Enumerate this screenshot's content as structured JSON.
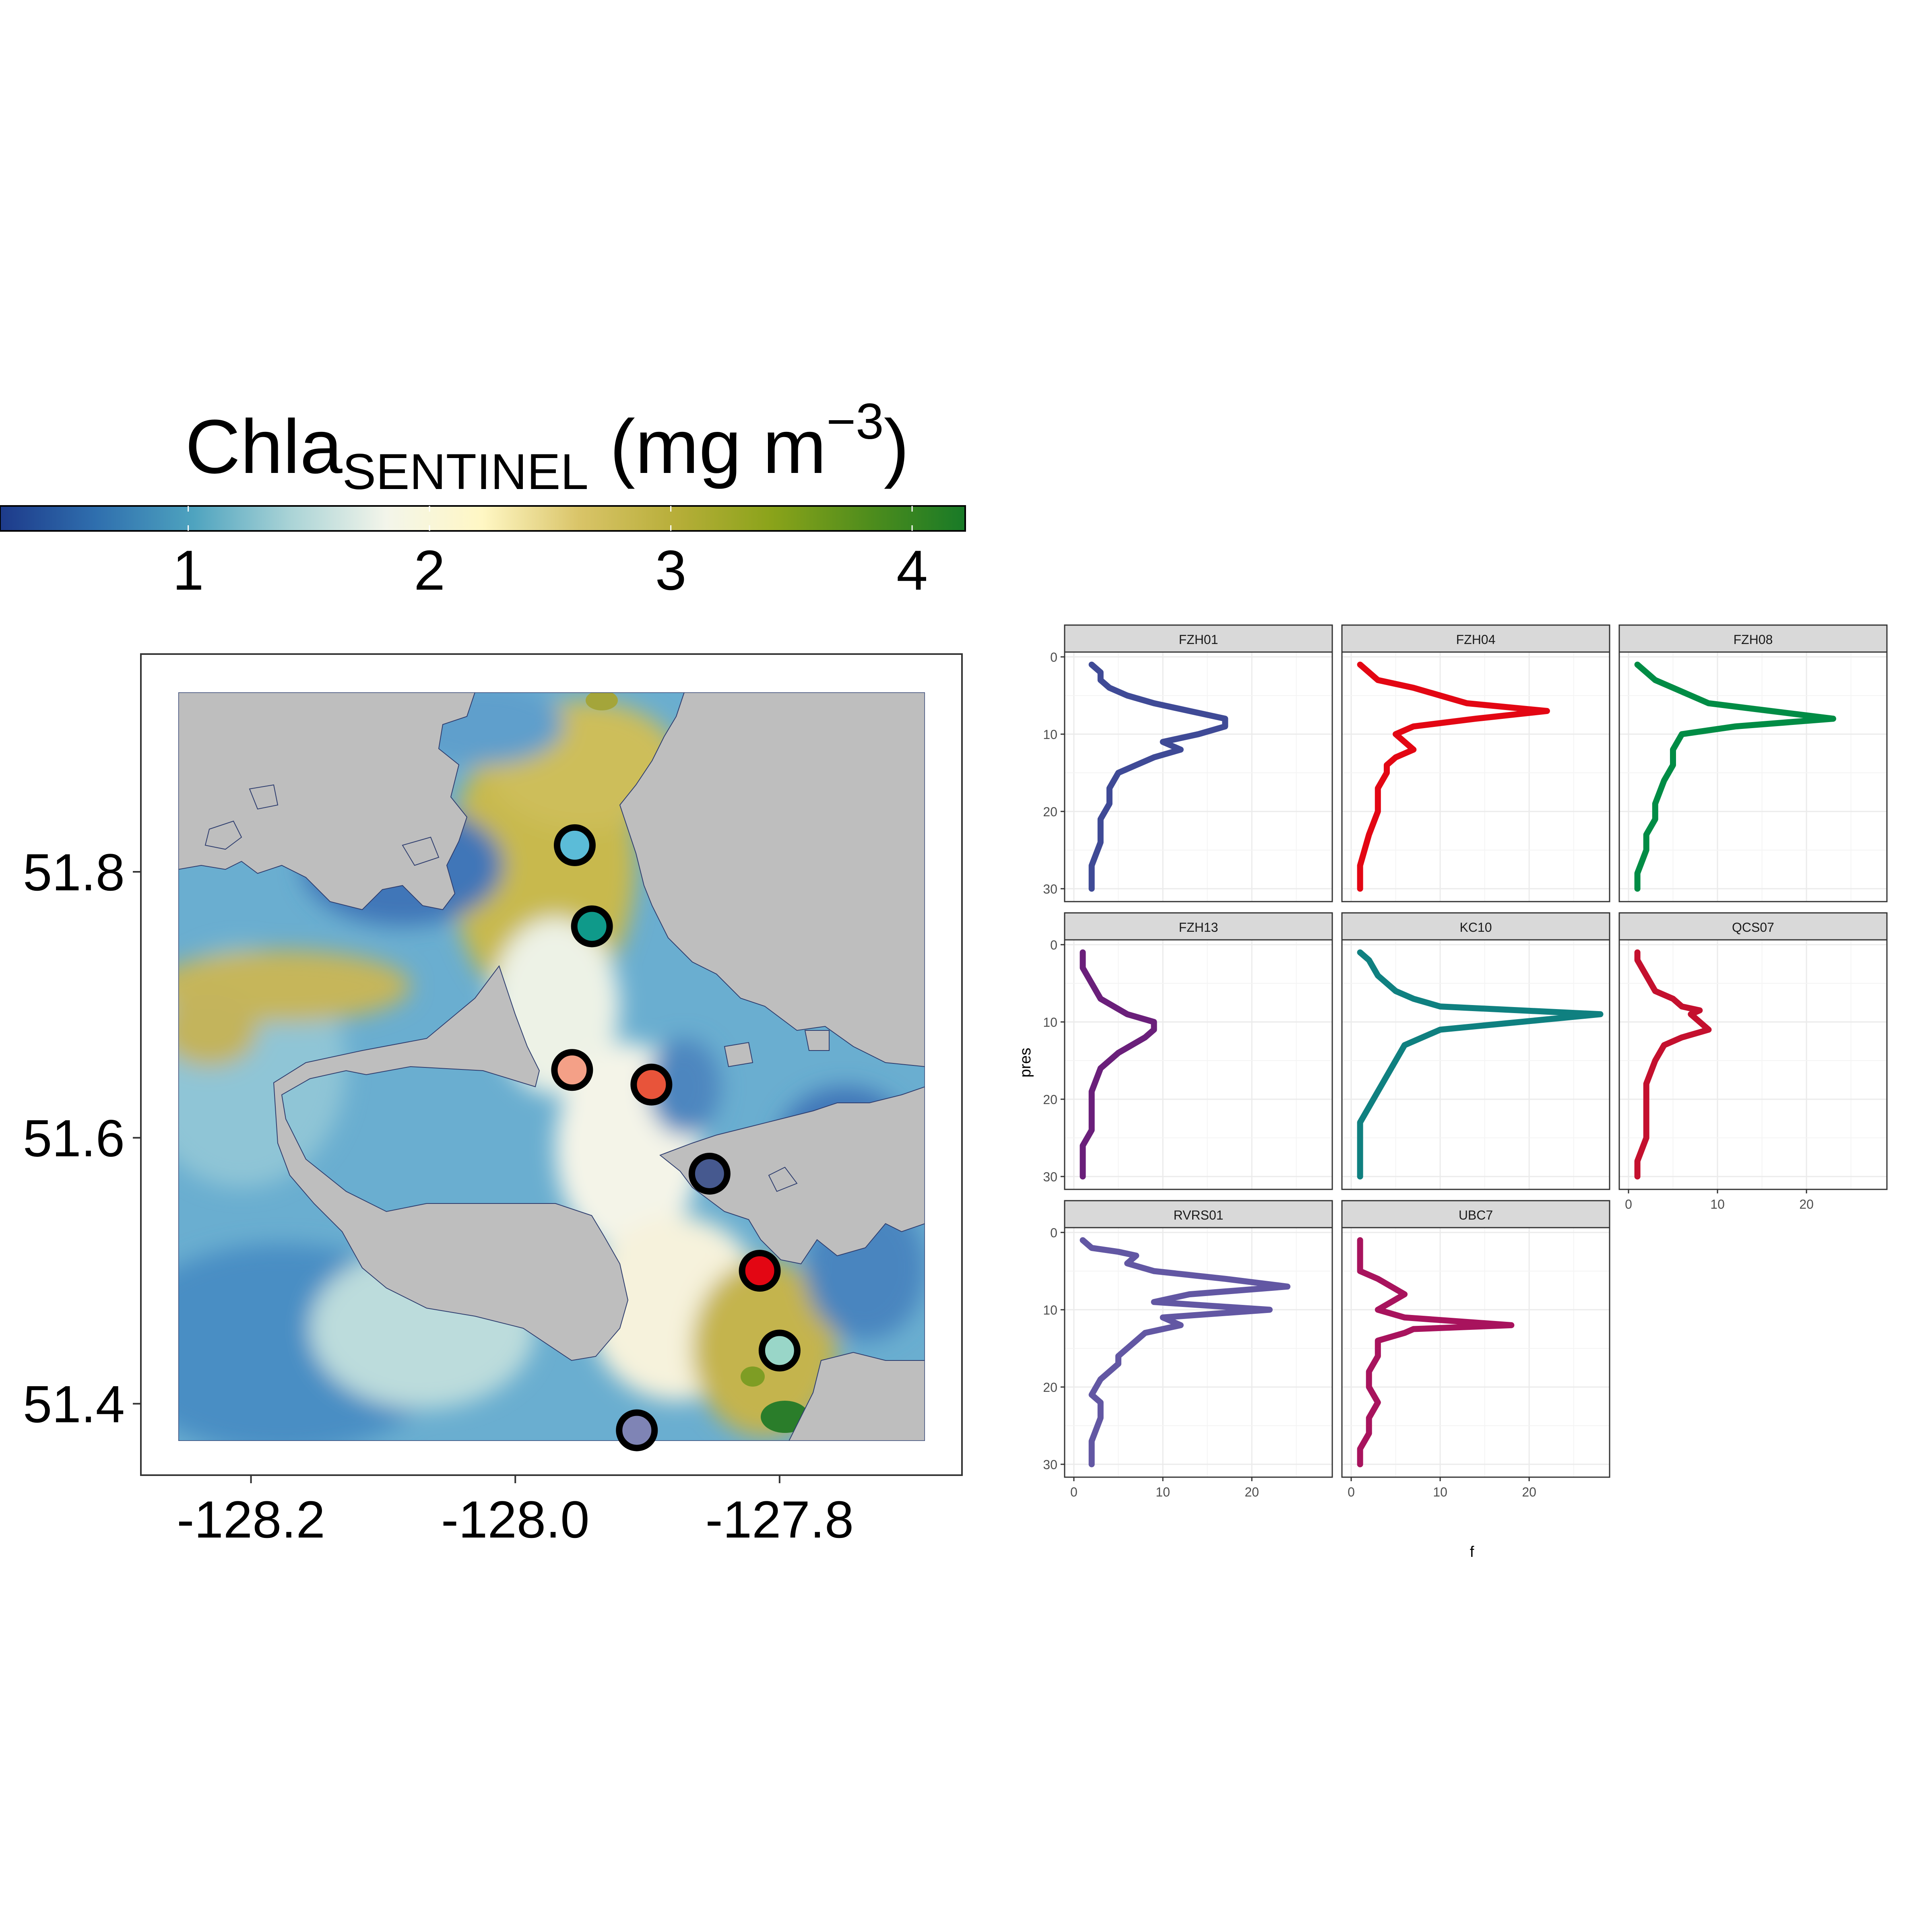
{
  "colorbar": {
    "title_main": "Chla",
    "title_sub": "SENTINEL",
    "title_unit": " (mg m",
    "title_sup": "−3",
    "title_close": ")",
    "ticks": [
      "1",
      "2",
      "3",
      "4"
    ],
    "tick_values": [
      1,
      2,
      3,
      4
    ],
    "range": [
      0.22,
      4.22
    ],
    "colors": [
      "#1d3a8a",
      "#2f6fae",
      "#4ea3bf",
      "#a9d3d6",
      "#f3f5ea",
      "#fff7c4",
      "#d9c468",
      "#b7ae39",
      "#8aa31a",
      "#4f8d1c",
      "#187a27"
    ]
  },
  "map": {
    "x_ticks": [
      "-128.2",
      "-128.0",
      "-127.8"
    ],
    "x_tick_values": [
      -128.2,
      -128.0,
      -127.8
    ],
    "y_ticks": [
      "51.8",
      "51.6",
      "51.4"
    ],
    "y_tick_values": [
      51.8,
      51.6,
      51.4
    ],
    "xlim": [
      -128.255,
      -127.69
    ],
    "ylim": [
      51.372,
      51.935
    ],
    "land_color": "#bebebe",
    "stations": [
      {
        "lon": -127.955,
        "lat": 51.82,
        "color": "#5bbcd8"
      },
      {
        "lon": -127.942,
        "lat": 51.759,
        "color": "#0f9a8a"
      },
      {
        "lon": -127.957,
        "lat": 51.651,
        "color": "#f4a087"
      },
      {
        "lon": -127.897,
        "lat": 51.64,
        "color": "#e8543a"
      },
      {
        "lon": -127.853,
        "lat": 51.573,
        "color": "#46598f"
      },
      {
        "lon": -127.815,
        "lat": 51.5,
        "color": "#e30613"
      },
      {
        "lon": -127.8,
        "lat": 51.44,
        "color": "#99d6c8"
      },
      {
        "lon": -127.908,
        "lat": 51.38,
        "color": "#7f84b5"
      }
    ]
  },
  "chart_data": {
    "type": "line",
    "xlabel": "f",
    "ylabel": "pres",
    "xlim": [
      0,
      28
    ],
    "ylim": [
      0,
      30
    ],
    "x_ticks": [
      "0",
      "10",
      "20"
    ],
    "y_ticks": [
      "0",
      "10",
      "20",
      "30"
    ],
    "panels": [
      {
        "name": "FZH01",
        "color": "#3f4a96",
        "f": [
          2,
          3,
          3,
          4,
          6,
          9,
          13,
          17,
          17,
          14,
          10,
          12,
          9,
          7,
          5,
          4,
          4,
          3,
          3,
          2,
          2
        ],
        "pres": [
          1,
          2,
          3,
          4,
          5,
          6,
          7,
          8,
          9,
          10,
          11,
          12,
          13,
          14,
          15,
          17,
          19,
          21,
          24,
          27,
          30
        ]
      },
      {
        "name": "FZH04",
        "color": "#e30613",
        "f": [
          1,
          2,
          3,
          7,
          10,
          13,
          22,
          14,
          7,
          5,
          6,
          7,
          5,
          4,
          4,
          3,
          3,
          2,
          1,
          1
        ],
        "pres": [
          1,
          2,
          3,
          4,
          5,
          6,
          7,
          8,
          9,
          10,
          11,
          12,
          13,
          14,
          15,
          17,
          20,
          23,
          27,
          30
        ]
      },
      {
        "name": "FZH08",
        "color": "#008c45",
        "f": [
          1,
          2,
          3,
          5,
          7,
          9,
          23,
          12,
          6,
          5,
          5,
          4,
          3,
          3,
          2,
          2,
          1,
          1
        ],
        "pres": [
          1,
          2,
          3,
          4,
          5,
          6,
          8,
          9,
          10,
          12,
          14,
          16,
          19,
          21,
          23,
          25,
          28,
          30
        ]
      },
      {
        "name": "FZH13",
        "color": "#6a1f7a",
        "f": [
          1,
          1,
          2,
          3,
          6,
          9,
          9,
          8,
          5,
          3,
          2,
          2,
          2,
          1,
          1,
          1
        ],
        "pres": [
          1,
          3,
          5,
          7,
          9,
          10,
          11,
          12,
          14,
          16,
          19,
          22,
          24,
          26,
          28,
          30
        ]
      },
      {
        "name": "KC10",
        "color": "#0f8080",
        "f": [
          1,
          2,
          3,
          5,
          7,
          10,
          28,
          10,
          6,
          5,
          4,
          3,
          2,
          1,
          1,
          1
        ],
        "pres": [
          1,
          2,
          4,
          6,
          7,
          8,
          9,
          11,
          13,
          15,
          17,
          19,
          21,
          23,
          26,
          30
        ]
      },
      {
        "name": "QCS07",
        "color": "#c4102e",
        "f": [
          1,
          1,
          2,
          3,
          5,
          6,
          8,
          7,
          9,
          6,
          4,
          3,
          2,
          2,
          2,
          1,
          1
        ],
        "pres": [
          1,
          2,
          4,
          6,
          7,
          8,
          8.5,
          9,
          11,
          12,
          13,
          15,
          18,
          21,
          25,
          28,
          30
        ]
      },
      {
        "name": "RVRS01",
        "color": "#6257a3",
        "f": [
          1,
          2,
          5,
          7,
          6,
          9,
          17,
          24,
          13,
          9,
          22,
          10,
          12,
          8,
          7,
          6,
          5,
          5,
          3,
          2,
          3,
          3,
          2,
          2
        ],
        "pres": [
          1,
          2,
          2.5,
          3,
          4,
          5,
          6,
          7,
          8,
          9,
          10,
          11,
          12,
          13,
          14,
          15,
          16,
          17,
          19,
          21,
          22,
          24,
          27,
          30
        ]
      },
      {
        "name": "UBC7",
        "color": "#a8135d",
        "f": [
          1,
          1,
          1,
          3,
          6,
          3,
          6,
          18,
          7,
          6,
          3,
          3,
          2,
          2,
          3,
          2,
          2,
          1,
          1
        ],
        "pres": [
          1,
          3,
          5,
          6,
          8,
          10,
          11,
          12,
          12.5,
          13,
          14,
          16,
          18,
          20,
          22,
          24,
          26,
          28,
          30
        ]
      }
    ]
  }
}
